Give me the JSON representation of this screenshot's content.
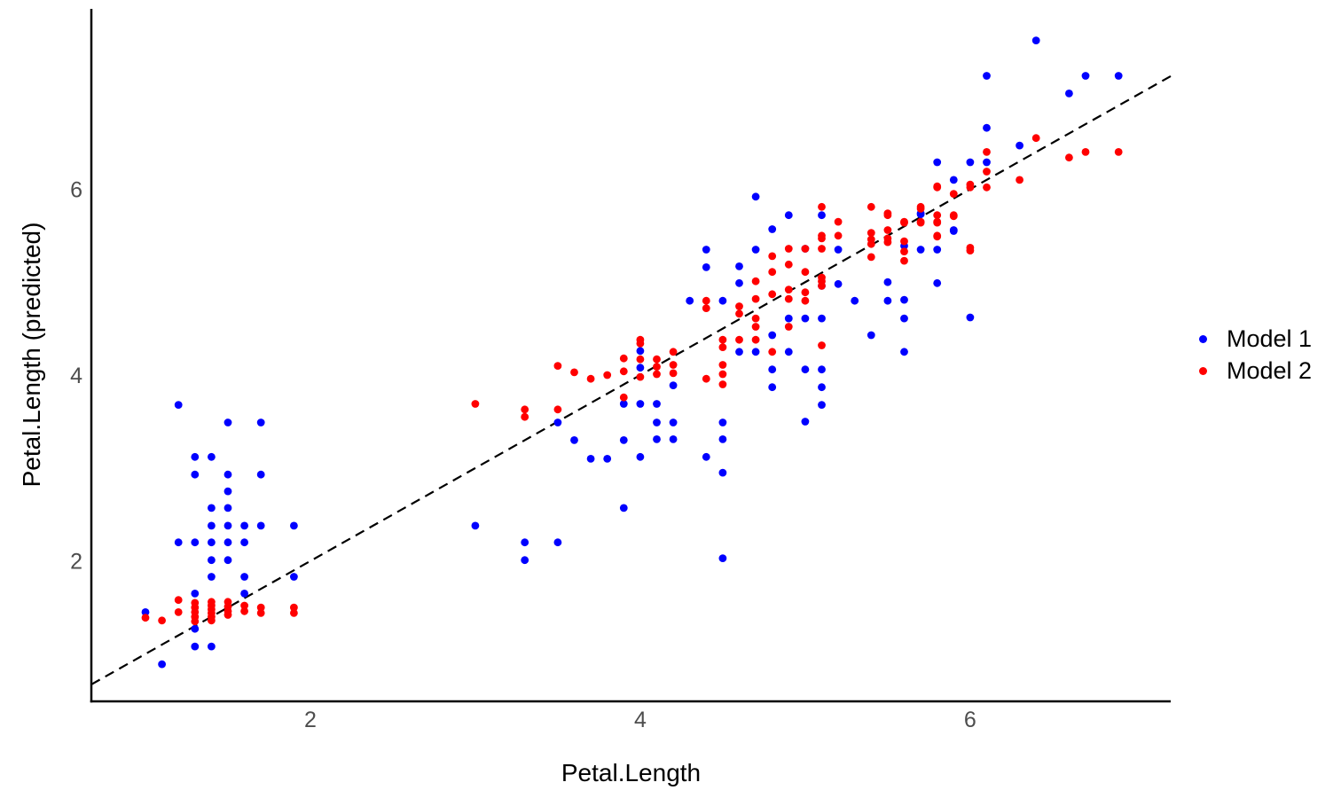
{
  "chart_data": {
    "type": "scatter",
    "title": "",
    "xlabel": "Petal.Length",
    "ylabel": "Petal.Length (predicted)",
    "x_axis": {
      "ticks": [
        2,
        4,
        6
      ],
      "range": [
        0.672,
        7.216
      ],
      "grid": false
    },
    "y_axis": {
      "ticks": [
        2,
        4,
        6
      ],
      "range": [
        0.49,
        7.94
      ],
      "grid": false
    },
    "reference_line": {
      "style": "dashed",
      "color": "#000000",
      "equation": "y = x"
    },
    "legend_position": "right",
    "point_color_model1": "#0000ff",
    "point_color_model2": "#ff0000",
    "axis_text_color": "#4d4d4d",
    "series": [
      {
        "name": "Model 1",
        "color": "#0000ff",
        "points": [
          [
            1.0,
            1.45
          ],
          [
            1.1,
            0.89
          ],
          [
            1.2,
            3.68
          ],
          [
            1.2,
            2.2
          ],
          [
            1.3,
            3.12
          ],
          [
            1.3,
            2.93
          ],
          [
            1.3,
            2.2
          ],
          [
            1.3,
            1.65
          ],
          [
            1.3,
            1.27
          ],
          [
            1.3,
            1.08
          ],
          [
            1.4,
            3.12
          ],
          [
            1.4,
            2.57
          ],
          [
            1.4,
            2.38
          ],
          [
            1.4,
            2.2
          ],
          [
            1.4,
            2.01
          ],
          [
            1.4,
            1.83
          ],
          [
            1.4,
            1.08
          ],
          [
            1.5,
            3.49
          ],
          [
            1.5,
            2.93
          ],
          [
            1.5,
            2.75
          ],
          [
            1.5,
            2.57
          ],
          [
            1.5,
            2.38
          ],
          [
            1.5,
            2.2
          ],
          [
            1.5,
            2.01
          ],
          [
            1.6,
            2.38
          ],
          [
            1.6,
            2.2
          ],
          [
            1.6,
            1.83
          ],
          [
            1.6,
            1.65
          ],
          [
            1.7,
            3.49
          ],
          [
            1.7,
            2.93
          ],
          [
            1.7,
            2.38
          ],
          [
            1.9,
            2.38
          ],
          [
            1.9,
            1.83
          ],
          [
            3.0,
            2.38
          ],
          [
            3.3,
            2.2
          ],
          [
            3.3,
            2.01
          ],
          [
            3.5,
            3.49
          ],
          [
            3.5,
            2.2
          ],
          [
            3.6,
            3.3
          ],
          [
            3.7,
            3.1
          ],
          [
            3.8,
            3.1
          ],
          [
            3.9,
            3.69
          ],
          [
            3.9,
            3.3
          ],
          [
            3.9,
            2.57
          ],
          [
            4.0,
            4.26
          ],
          [
            4.0,
            4.08
          ],
          [
            4.0,
            3.69
          ],
          [
            4.0,
            3.12
          ],
          [
            4.1,
            3.69
          ],
          [
            4.1,
            3.49
          ],
          [
            4.1,
            3.31
          ],
          [
            4.2,
            3.89
          ],
          [
            4.2,
            3.49
          ],
          [
            4.2,
            3.31
          ],
          [
            4.3,
            4.8
          ],
          [
            4.4,
            5.35
          ],
          [
            4.4,
            5.16
          ],
          [
            4.4,
            3.12
          ],
          [
            4.5,
            4.8
          ],
          [
            4.5,
            3.49
          ],
          [
            4.5,
            3.31
          ],
          [
            4.5,
            2.95
          ],
          [
            4.5,
            2.03
          ],
          [
            4.6,
            5.17
          ],
          [
            4.6,
            4.99
          ],
          [
            4.6,
            4.25
          ],
          [
            4.7,
            5.92
          ],
          [
            4.7,
            5.35
          ],
          [
            4.7,
            4.25
          ],
          [
            4.8,
            5.57
          ],
          [
            4.8,
            4.43
          ],
          [
            4.8,
            4.06
          ],
          [
            4.8,
            3.87
          ],
          [
            4.9,
            5.72
          ],
          [
            4.9,
            4.61
          ],
          [
            4.9,
            4.25
          ],
          [
            5.0,
            5.36
          ],
          [
            5.0,
            4.61
          ],
          [
            5.0,
            4.06
          ],
          [
            5.0,
            3.5
          ],
          [
            5.1,
            5.72
          ],
          [
            5.1,
            4.96
          ],
          [
            5.1,
            4.61
          ],
          [
            5.1,
            4.06
          ],
          [
            5.1,
            3.87
          ],
          [
            5.1,
            3.68
          ],
          [
            5.2,
            5.35
          ],
          [
            5.2,
            4.98
          ],
          [
            5.3,
            4.8
          ],
          [
            5.4,
            4.43
          ],
          [
            5.5,
            5.0
          ],
          [
            5.5,
            4.8
          ],
          [
            5.6,
            5.39
          ],
          [
            5.6,
            4.81
          ],
          [
            5.6,
            4.61
          ],
          [
            5.6,
            4.25
          ],
          [
            5.7,
            5.74
          ],
          [
            5.7,
            5.73
          ],
          [
            5.7,
            5.35
          ],
          [
            5.8,
            6.29
          ],
          [
            5.8,
            5.35
          ],
          [
            5.8,
            4.99
          ],
          [
            5.9,
            6.1
          ],
          [
            5.9,
            5.56
          ],
          [
            5.9,
            5.55
          ],
          [
            6.0,
            6.29
          ],
          [
            6.0,
            4.62
          ],
          [
            6.1,
            7.22
          ],
          [
            6.1,
            6.66
          ],
          [
            6.1,
            6.29
          ],
          [
            6.3,
            6.47
          ],
          [
            6.4,
            7.6
          ],
          [
            6.6,
            7.03
          ],
          [
            6.7,
            7.22
          ],
          [
            6.9,
            7.22
          ]
        ]
      },
      {
        "name": "Model 2",
        "color": "#ff0000",
        "points": [
          [
            1.0,
            1.39
          ],
          [
            1.1,
            1.36
          ],
          [
            1.2,
            1.58
          ],
          [
            1.2,
            1.45
          ],
          [
            1.3,
            1.55
          ],
          [
            1.3,
            1.5
          ],
          [
            1.3,
            1.45
          ],
          [
            1.3,
            1.4
          ],
          [
            1.3,
            1.35
          ],
          [
            1.4,
            1.56
          ],
          [
            1.4,
            1.52
          ],
          [
            1.4,
            1.48
          ],
          [
            1.4,
            1.44
          ],
          [
            1.4,
            1.4
          ],
          [
            1.4,
            1.36
          ],
          [
            1.5,
            1.56
          ],
          [
            1.5,
            1.51
          ],
          [
            1.5,
            1.46
          ],
          [
            1.5,
            1.42
          ],
          [
            1.6,
            1.52
          ],
          [
            1.6,
            1.46
          ],
          [
            1.7,
            1.5
          ],
          [
            1.7,
            1.44
          ],
          [
            1.9,
            1.5
          ],
          [
            1.9,
            1.44
          ],
          [
            3.0,
            3.69
          ],
          [
            3.3,
            3.63
          ],
          [
            3.3,
            3.55
          ],
          [
            3.5,
            4.1
          ],
          [
            3.5,
            3.63
          ],
          [
            3.6,
            4.03
          ],
          [
            3.7,
            3.96
          ],
          [
            3.8,
            4.0
          ],
          [
            3.9,
            4.18
          ],
          [
            3.9,
            4.04
          ],
          [
            3.9,
            3.76
          ],
          [
            4.0,
            4.38
          ],
          [
            4.0,
            4.34
          ],
          [
            4.0,
            4.17
          ],
          [
            4.0,
            3.98
          ],
          [
            4.1,
            4.17
          ],
          [
            4.1,
            4.09
          ],
          [
            4.1,
            4.01
          ],
          [
            4.2,
            4.25
          ],
          [
            4.2,
            4.11
          ],
          [
            4.2,
            4.02
          ],
          [
            4.4,
            4.8
          ],
          [
            4.4,
            4.72
          ],
          [
            4.4,
            3.96
          ],
          [
            4.5,
            4.38
          ],
          [
            4.5,
            4.3
          ],
          [
            4.5,
            4.11
          ],
          [
            4.5,
            4.01
          ],
          [
            4.5,
            3.9
          ],
          [
            4.6,
            4.74
          ],
          [
            4.6,
            4.66
          ],
          [
            4.6,
            4.38
          ],
          [
            4.7,
            5.01
          ],
          [
            4.7,
            4.82
          ],
          [
            4.7,
            4.61
          ],
          [
            4.7,
            4.52
          ],
          [
            4.7,
            4.38
          ],
          [
            4.8,
            5.28
          ],
          [
            4.8,
            5.11
          ],
          [
            4.8,
            4.87
          ],
          [
            4.8,
            4.25
          ],
          [
            4.9,
            5.36
          ],
          [
            4.9,
            5.19
          ],
          [
            4.9,
            4.92
          ],
          [
            4.9,
            4.82
          ],
          [
            4.9,
            4.52
          ],
          [
            5.0,
            5.36
          ],
          [
            5.0,
            5.11
          ],
          [
            5.0,
            4.89
          ],
          [
            5.0,
            4.8
          ],
          [
            5.1,
            5.81
          ],
          [
            5.1,
            5.5
          ],
          [
            5.1,
            5.47
          ],
          [
            5.1,
            5.36
          ],
          [
            5.1,
            5.05
          ],
          [
            5.1,
            5.01
          ],
          [
            5.1,
            4.96
          ],
          [
            5.1,
            4.32
          ],
          [
            5.2,
            5.65
          ],
          [
            5.2,
            5.5
          ],
          [
            5.4,
            5.81
          ],
          [
            5.4,
            5.53
          ],
          [
            5.4,
            5.46
          ],
          [
            5.4,
            5.41
          ],
          [
            5.4,
            5.27
          ],
          [
            5.5,
            5.74
          ],
          [
            5.5,
            5.72
          ],
          [
            5.5,
            5.56
          ],
          [
            5.5,
            5.47
          ],
          [
            5.5,
            5.43
          ],
          [
            5.6,
            5.65
          ],
          [
            5.6,
            5.64
          ],
          [
            5.6,
            5.44
          ],
          [
            5.6,
            5.33
          ],
          [
            5.6,
            5.23
          ],
          [
            5.7,
            5.81
          ],
          [
            5.7,
            5.79
          ],
          [
            5.7,
            5.65
          ],
          [
            5.7,
            5.64
          ],
          [
            5.8,
            6.03
          ],
          [
            5.8,
            6.02
          ],
          [
            5.8,
            5.72
          ],
          [
            5.8,
            5.65
          ],
          [
            5.8,
            5.64
          ],
          [
            5.8,
            5.5
          ],
          [
            5.8,
            5.49
          ],
          [
            5.9,
            5.95
          ],
          [
            5.9,
            5.72
          ],
          [
            5.9,
            5.71
          ],
          [
            6.0,
            6.05
          ],
          [
            6.0,
            6.02
          ],
          [
            6.0,
            5.37
          ],
          [
            6.0,
            5.34
          ],
          [
            6.1,
            6.4
          ],
          [
            6.1,
            6.19
          ],
          [
            6.1,
            6.02
          ],
          [
            6.3,
            6.1
          ],
          [
            6.4,
            6.55
          ],
          [
            6.6,
            6.34
          ],
          [
            6.7,
            6.4
          ],
          [
            6.9,
            6.4
          ]
        ]
      }
    ],
    "legend": {
      "items": [
        {
          "label": "Model 1",
          "color": "#0000ff"
        },
        {
          "label": "Model 2",
          "color": "#ff0000"
        }
      ]
    }
  }
}
